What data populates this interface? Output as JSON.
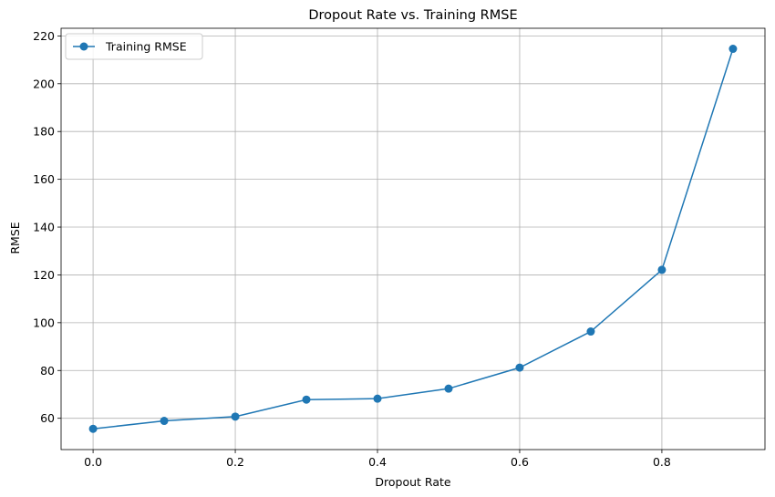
{
  "chart_data": {
    "type": "line",
    "title": "Dropout Rate vs. Training RMSE",
    "xlabel": "Dropout Rate",
    "ylabel": "RMSE",
    "xlim": [
      -0.045,
      0.945
    ],
    "ylim": [
      46.9,
      223.2
    ],
    "xticks": [
      0.0,
      0.2,
      0.4,
      0.6,
      0.8
    ],
    "xtick_labels": [
      "0.0",
      "0.2",
      "0.4",
      "0.6",
      "0.8"
    ],
    "yticks": [
      60,
      80,
      100,
      120,
      140,
      160,
      180,
      200,
      220
    ],
    "ytick_labels": [
      "60",
      "80",
      "100",
      "120",
      "140",
      "160",
      "180",
      "200",
      "220"
    ],
    "grid": true,
    "legend_position": "top-left",
    "series": [
      {
        "name": "Training RMSE",
        "color": "#1f77b4",
        "marker": "circle",
        "x": [
          0.0,
          0.1,
          0.2,
          0.3,
          0.4,
          0.5,
          0.6,
          0.7,
          0.8,
          0.9
        ],
        "y": [
          55.6,
          58.9,
          60.7,
          67.8,
          68.2,
          72.4,
          81.2,
          96.3,
          122.1,
          214.6
        ]
      }
    ]
  }
}
